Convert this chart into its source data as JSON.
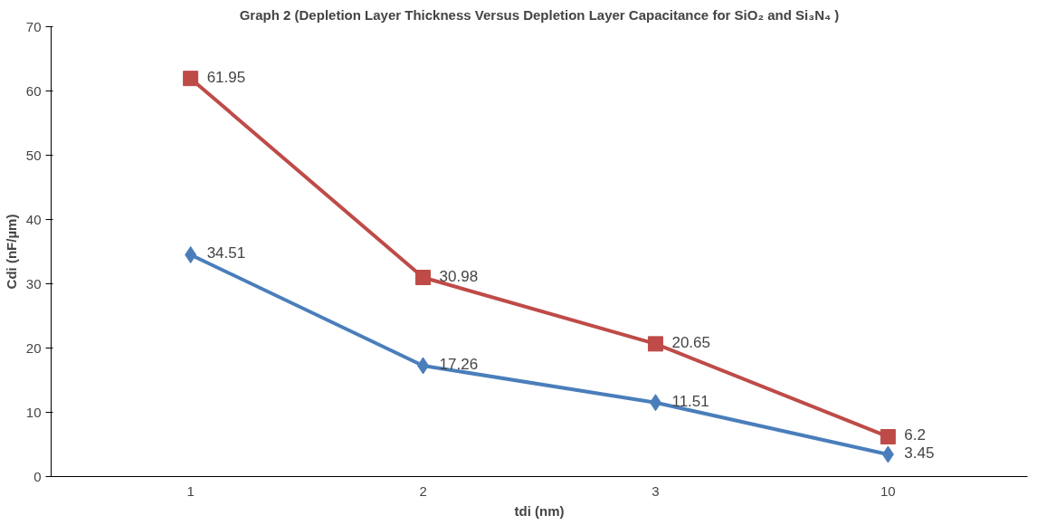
{
  "chart_data": {
    "type": "line",
    "title": "Graph 2 (Depletion Layer Thickness Versus Depletion Layer Capacitance for SiO₂ and Si₃N₄ )",
    "xlabel": "tdi (nm)",
    "ylabel": "Cdi (nF/µm)",
    "categories": [
      "1",
      "2",
      "3",
      "10"
    ],
    "series": [
      {
        "color": "#4a7ebb",
        "marker": "diamond",
        "values": [
          34.51,
          17.26,
          11.51,
          3.45
        ]
      },
      {
        "color": "#be4b48",
        "marker": "square",
        "values": [
          61.95,
          30.98,
          20.65,
          6.2
        ]
      }
    ],
    "ylim": [
      0,
      70
    ],
    "yticks": [
      0,
      10,
      20,
      30,
      40,
      50,
      60,
      70
    ],
    "data_labels": true,
    "grid": false
  }
}
